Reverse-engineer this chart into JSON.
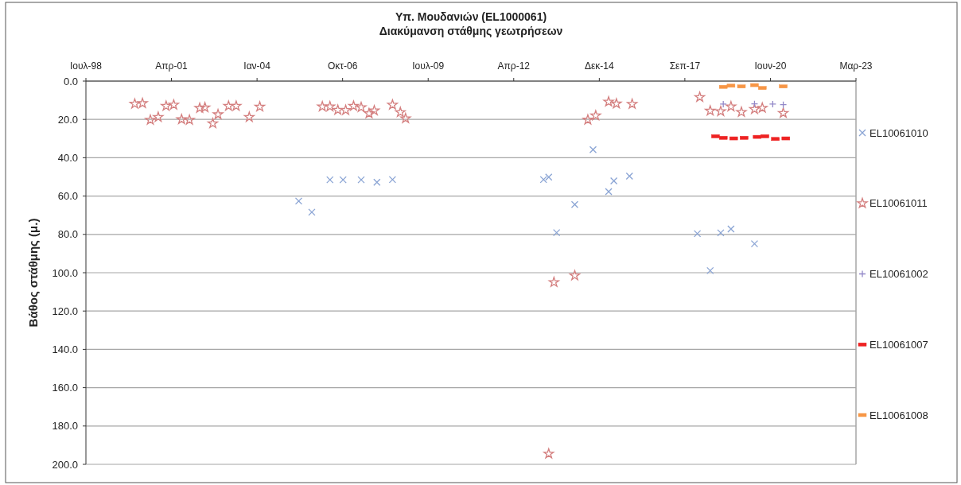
{
  "chart_data": {
    "type": "scatter",
    "title": "Υπ. Μουδανιών (EL1000061)",
    "subtitle": "Διακύμανση στάθμης γεωτρήσεων",
    "ylabel": "Βάθος στάθμης (μ.)",
    "xlim": [
      "1998-07-24",
      "2023-03-15"
    ],
    "xticks": [
      {
        "value": "1998-07-24",
        "label": "Ιουλ-98"
      },
      {
        "value": "2001-04-19",
        "label": "Απρ-01"
      },
      {
        "value": "2004-01-14",
        "label": "Ιαν-04"
      },
      {
        "value": "2006-10-10",
        "label": "Οκτ-06"
      },
      {
        "value": "2009-07-06",
        "label": "Ιουλ-09"
      },
      {
        "value": "2012-04-01",
        "label": "Απρ-12"
      },
      {
        "value": "2014-12-27",
        "label": "Δεκ-14"
      },
      {
        "value": "2017-09-22",
        "label": "Σεπ-17"
      },
      {
        "value": "2020-06-18",
        "label": "Ιουν-20"
      },
      {
        "value": "2023-03-15",
        "label": "Μαρ-23"
      }
    ],
    "ylim": [
      200,
      0
    ],
    "yticks": [
      {
        "value": 0,
        "label": "0.0"
      },
      {
        "value": 20,
        "label": "20.0"
      },
      {
        "value": 40,
        "label": "40.0"
      },
      {
        "value": 60,
        "label": "60.0"
      },
      {
        "value": 80,
        "label": "80.0"
      },
      {
        "value": 100,
        "label": "100.0"
      },
      {
        "value": 120,
        "label": "120.0"
      },
      {
        "value": 140,
        "label": "140.0"
      },
      {
        "value": 160,
        "label": "160.0"
      },
      {
        "value": 180,
        "label": "180.0"
      },
      {
        "value": 200,
        "label": "200.0"
      }
    ],
    "grid": "y",
    "legend": "right",
    "series": [
      {
        "name": "EL10061010",
        "color": "#8aa4d4",
        "marker": "cross",
        "x": [
          "2005-05",
          "2005-10",
          "2006-05",
          "2006-10",
          "2007-05",
          "2007-11",
          "2008-05",
          "2013-03",
          "2013-05",
          "2013-08",
          "2014-03",
          "2014-10",
          "2015-04",
          "2015-06",
          "2015-12",
          "2018-02",
          "2018-07",
          "2018-11",
          "2019-03",
          "2019-12"
        ],
        "values": [
          62.6,
          68.4,
          51.5,
          51.5,
          51.5,
          52.8,
          51.4,
          51.4,
          50.1,
          79.1,
          64.4,
          35.8,
          57.7,
          52.1,
          49.6,
          79.6,
          98.9,
          79.2,
          77.2,
          84.9
        ]
      },
      {
        "name": "EL10061011",
        "color": "#d47f7f",
        "marker": "star",
        "x": [
          "2000-02",
          "2000-05",
          "2000-08",
          "2000-11",
          "2001-02",
          "2001-05",
          "2001-08",
          "2001-11",
          "2002-03",
          "2002-05",
          "2002-08",
          "2002-10",
          "2003-02",
          "2003-05",
          "2003-10",
          "2004-02",
          "2006-02",
          "2006-05",
          "2006-08",
          "2006-11",
          "2007-02",
          "2007-05",
          "2007-08",
          "2007-10",
          "2008-05",
          "2008-08",
          "2008-10",
          "2013-05",
          "2013-07",
          "2014-03",
          "2014-08",
          "2014-11",
          "2015-04",
          "2015-07",
          "2016-01",
          "2018-03",
          "2018-07",
          "2018-11",
          "2019-03",
          "2019-07",
          "2019-12",
          "2020-03",
          "2020-11"
        ],
        "values": [
          11.9,
          11.6,
          20.3,
          18.8,
          13.0,
          12.4,
          20.0,
          20.3,
          14.1,
          13.8,
          22.1,
          17.4,
          13.0,
          13.0,
          18.8,
          13.4,
          13.3,
          13.3,
          15.1,
          15.2,
          13.0,
          13.7,
          16.9,
          15.4,
          12.4,
          16.3,
          19.5,
          194.5,
          105.0,
          101.5,
          20.2,
          18.0,
          10.8,
          11.8,
          12.0,
          8.4,
          15.5,
          15.8,
          13.3,
          16.2,
          14.7,
          14.0,
          16.7
        ]
      },
      {
        "name": "EL10061002",
        "color": "#9288c8",
        "marker": "plus",
        "x": [
          "2018-12",
          "2019-12",
          "2020-07",
          "2020-11"
        ],
        "values": [
          12.0,
          11.9,
          12.0,
          12.3
        ]
      },
      {
        "name": "EL10061007",
        "color": "#ee2222",
        "marker": "square",
        "x": [
          "2018-09",
          "2018-12",
          "2019-04",
          "2019-08",
          "2020-01",
          "2020-04",
          "2020-08",
          "2020-12"
        ],
        "values": [
          28.8,
          29.6,
          29.9,
          29.6,
          29.1,
          28.8,
          30.2,
          29.9
        ]
      },
      {
        "name": "EL10061008",
        "color": "#f79646",
        "marker": "square",
        "x": [
          "2018-12",
          "2019-03",
          "2019-07",
          "2019-12",
          "2020-03",
          "2020-11"
        ],
        "values": [
          3.0,
          2.4,
          2.8,
          2.1,
          3.6,
          2.8
        ]
      }
    ]
  }
}
